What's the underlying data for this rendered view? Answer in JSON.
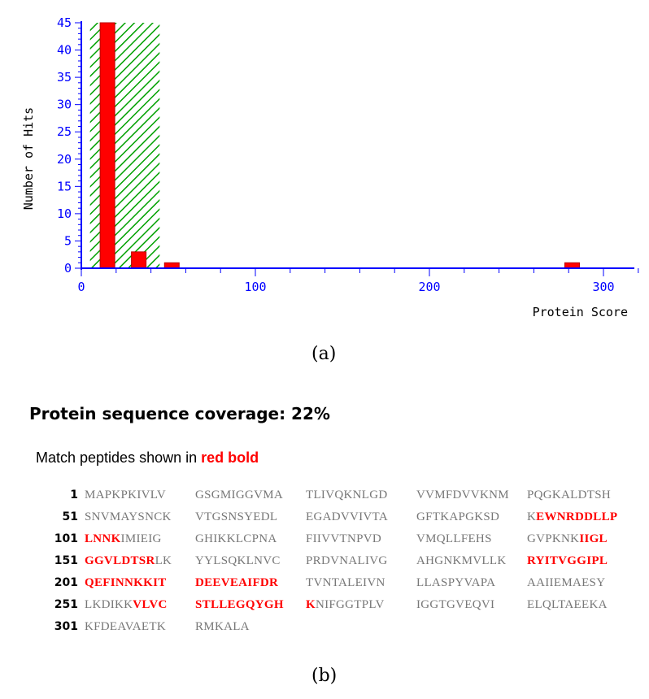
{
  "chart_data": {
    "type": "bar",
    "title": "",
    "xlabel": "Protein Score",
    "ylabel": "Number of Hits",
    "xlim": [
      0,
      320
    ],
    "ylim": [
      0,
      45
    ],
    "x_ticks": [
      0,
      100,
      200,
      300
    ],
    "y_ticks": [
      0,
      5,
      10,
      15,
      20,
      25,
      30,
      35,
      40,
      45
    ],
    "threshold_region": {
      "x_from": 5,
      "x_to": 45,
      "pattern": "green diagonal hatching"
    },
    "series": [
      {
        "x": [
          15,
          33,
          52,
          282
        ],
        "values": [
          45,
          3,
          1,
          1
        ]
      }
    ],
    "colors": {
      "bar": "#ff0000",
      "bar_edge": "#b80000",
      "axis": "#0000ff",
      "hatch": "#00a000"
    }
  },
  "caption_a": "(a)",
  "caption_b": "(b)",
  "coverage_title": "Protein sequence coverage: 22%",
  "match_note": {
    "prefix": "Match peptides shown in ",
    "highlight": "red bold"
  },
  "sequence": [
    {
      "num": "1",
      "blocks": [
        [
          [
            "MAPKPKIVLV",
            false
          ]
        ],
        [
          [
            "GSGMIGGVMA",
            false
          ]
        ],
        [
          [
            "TLIVQKNLGD",
            false
          ]
        ],
        [
          [
            "VVMFDVVKNM",
            false
          ]
        ],
        [
          [
            "PQGKALDTSH",
            false
          ]
        ]
      ]
    },
    {
      "num": "51",
      "blocks": [
        [
          [
            "SNVMAYSNCK",
            false
          ]
        ],
        [
          [
            "VTGSNSYEDL",
            false
          ]
        ],
        [
          [
            "EGADVVIVTA",
            false
          ]
        ],
        [
          [
            "GFTKAPGKSD",
            false
          ]
        ],
        [
          [
            "K",
            false
          ],
          [
            "EWNRDDLLP",
            true
          ]
        ]
      ]
    },
    {
      "num": "101",
      "blocks": [
        [
          [
            "LNNK",
            true
          ],
          [
            "IMIEIG",
            false
          ]
        ],
        [
          [
            "GHIKKLCPNA",
            false
          ]
        ],
        [
          [
            "FIIVVTNPVD",
            false
          ]
        ],
        [
          [
            "VMQLLFEHS",
            false
          ]
        ],
        [
          [
            "GVPKNK",
            false
          ],
          [
            "IIGL",
            true
          ]
        ]
      ]
    },
    {
      "num": "151",
      "blocks": [
        [
          [
            "GGVLDTSR",
            true
          ],
          [
            "LK",
            false
          ]
        ],
        [
          [
            "YYLSQKLNVC",
            false
          ]
        ],
        [
          [
            "PRDVNALIVG",
            false
          ]
        ],
        [
          [
            "AHGNKMVLLK",
            false
          ]
        ],
        [
          [
            "RYITVGGIPL",
            true
          ]
        ]
      ]
    },
    {
      "num": "201",
      "blocks": [
        [
          [
            "QEFINNKKIT",
            true
          ]
        ],
        [
          [
            "DEEVEAIFDR",
            true
          ]
        ],
        [
          [
            "TVNTALEIVN",
            false
          ]
        ],
        [
          [
            "LLASPYVAPA",
            false
          ]
        ],
        [
          [
            "AAIIEMAESY",
            false
          ]
        ]
      ]
    },
    {
      "num": "251",
      "blocks": [
        [
          [
            "LKDIKK",
            false
          ],
          [
            "VLVC",
            true
          ]
        ],
        [
          [
            "STLLEGQYGH",
            true
          ]
        ],
        [
          [
            "K",
            true
          ],
          [
            "NIFGGTPLV",
            false
          ]
        ],
        [
          [
            "IGGTGVEQVI",
            false
          ]
        ],
        [
          [
            "ELQLTAEEKA",
            false
          ]
        ]
      ]
    },
    {
      "num": "301",
      "blocks": [
        [
          [
            "KFDEAVAETK",
            false
          ]
        ],
        [
          [
            "RMKALA",
            false
          ]
        ]
      ]
    }
  ]
}
